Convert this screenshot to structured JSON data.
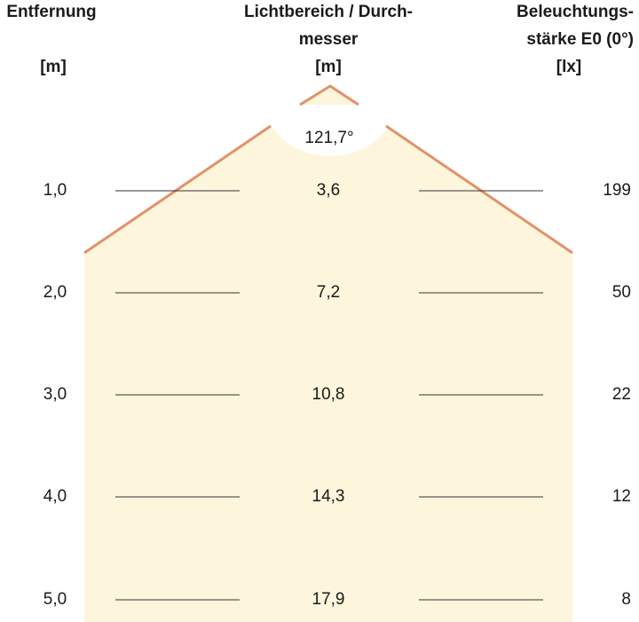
{
  "headers": {
    "distance": {
      "line1": "Entfernung",
      "unit": "[m]"
    },
    "diameter": {
      "line1": "Lichtbereich / Durch-",
      "line2": "messer",
      "unit": "[m]"
    },
    "illuminance": {
      "line1": "Beleuchtungs-",
      "line2": "stärke E0 (0°)",
      "unit": "[lx]"
    }
  },
  "beam_angle": "121,7°",
  "rows": [
    {
      "distance": "1,0",
      "diameter": "3,6",
      "illuminance": "199"
    },
    {
      "distance": "2,0",
      "diameter": "7,2",
      "illuminance": "50"
    },
    {
      "distance": "3,0",
      "diameter": "10,8",
      "illuminance": "22"
    },
    {
      "distance": "4,0",
      "diameter": "14,3",
      "illuminance": "12"
    },
    {
      "distance": "5,0",
      "diameter": "17,9",
      "illuminance": "8"
    }
  ]
}
